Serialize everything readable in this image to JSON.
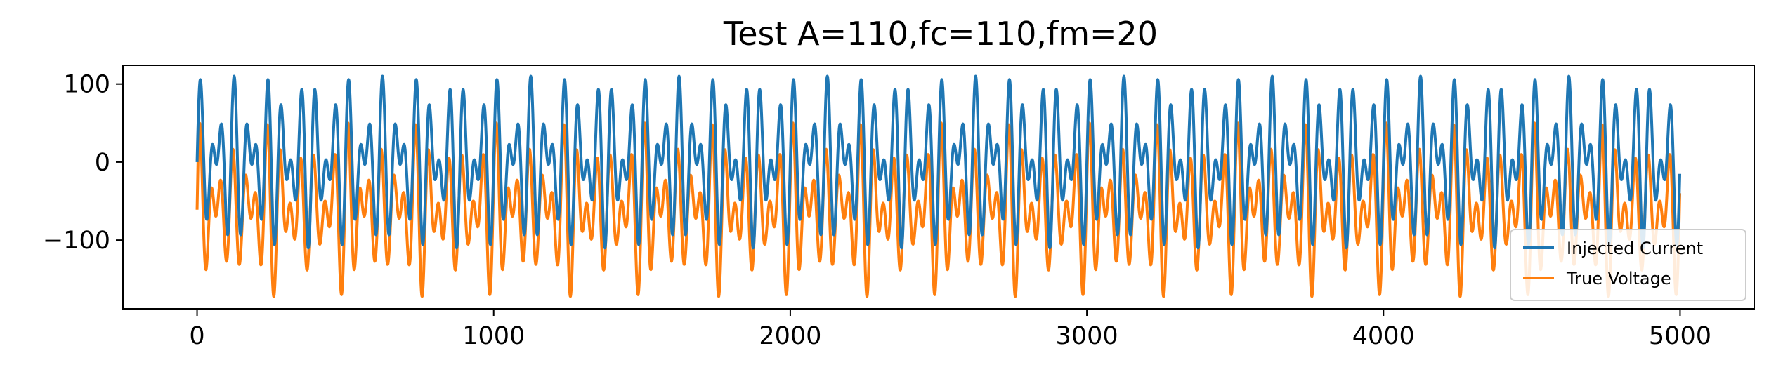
{
  "chart_data": {
    "type": "line",
    "title": "Test A=110,fc=110,fm=20",
    "xlabel": "",
    "ylabel": "",
    "xlim": [
      -250,
      5250
    ],
    "ylim": [
      -188,
      124
    ],
    "xticks": [
      0,
      1000,
      2000,
      3000,
      4000,
      5000
    ],
    "xtick_labels": [
      "0",
      "1000",
      "2000",
      "3000",
      "4000",
      "5000"
    ],
    "yticks": [
      100,
      0,
      -100
    ],
    "ytick_labels": [
      "100",
      "0",
      "−100"
    ],
    "grid": false,
    "legend_position": "lower-right",
    "n_points": 5000,
    "series": [
      {
        "name": "Injected Current",
        "color": "#1f77b4",
        "model": "A*sin(2*pi*fc*t)*cos(2*pi*fm*t), t in [0,1]",
        "A": 110,
        "fc": 110,
        "fm": 20
      },
      {
        "name": "True Voltage",
        "color": "#ff7f0e",
        "model": "response to injected current",
        "offset": -62,
        "range_min": -172,
        "range_max": 50
      }
    ]
  }
}
